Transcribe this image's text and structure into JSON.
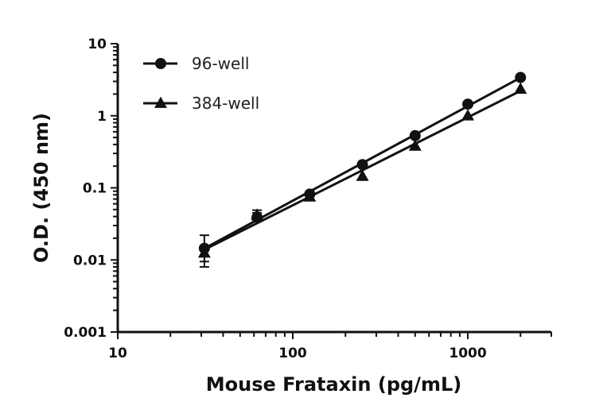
{
  "chart_data": {
    "type": "scatter",
    "title": "",
    "xlabel": "Mouse Frataxin (pg/mL)",
    "ylabel": "O.D. (450 nm)",
    "x_scale": "log",
    "y_scale": "log",
    "xlim": [
      10,
      3000
    ],
    "ylim": [
      0.001,
      10
    ],
    "x_tick_labels": [
      "10",
      "100",
      "1000"
    ],
    "y_tick_labels": [
      "0.001",
      "0.01",
      "0.1",
      "1",
      "10"
    ],
    "grid": false,
    "legend_position": "top-left",
    "series": [
      {
        "name": "96-well",
        "marker": "circle",
        "color": "#111111",
        "x": [
          31.25,
          62.5,
          125,
          250,
          500,
          1000,
          2000
        ],
        "y": [
          0.0145,
          0.039,
          0.082,
          0.21,
          0.53,
          1.45,
          3.4
        ],
        "y_err_low": [
          0.0065,
          0.005,
          0.005,
          0.01,
          0.03,
          0.08,
          0.15
        ],
        "y_err_high": [
          0.0075,
          0.006,
          0.005,
          0.01,
          0.03,
          0.08,
          0.15
        ]
      },
      {
        "name": "384-well",
        "marker": "triangle",
        "color": "#111111",
        "x": [
          31.25,
          62.5,
          125,
          250,
          500,
          1000,
          2000
        ],
        "y": [
          0.0125,
          0.042,
          0.075,
          0.145,
          0.38,
          1.0,
          2.35
        ],
        "y_err_low": [
          0.003,
          0.006,
          0.004,
          0.008,
          0.02,
          0.05,
          0.1
        ],
        "y_err_high": [
          0.003,
          0.007,
          0.004,
          0.008,
          0.02,
          0.05,
          0.1
        ]
      }
    ]
  }
}
